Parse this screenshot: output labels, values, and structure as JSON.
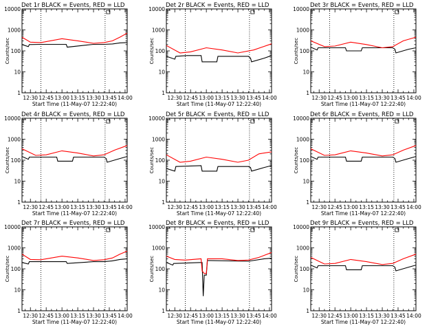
{
  "colors": {
    "events": "#000000",
    "lld": "#ff0000",
    "axes": "#000000",
    "grid": "#000000"
  },
  "chart_data": [
    {
      "type": "line",
      "title": "Det 1r BLACK = Events, RED = LLD",
      "xlabel": "Start Time (11-May-07 12:22:40)",
      "ylabel": "Counts/sec",
      "yscale": "log",
      "x_unit": "clock",
      "xlim": [
        "12:22",
        "14:02"
      ],
      "ylim": [
        1,
        10000
      ],
      "x_ticks": [
        "12:30",
        "12:45",
        "13:00",
        "13:15",
        "13:30",
        "13:45",
        "14:00"
      ],
      "y_ticks": [
        "1",
        "10",
        "100",
        "1000",
        "10000"
      ],
      "vlines": [
        "12:40",
        "13:41"
      ],
      "corner_mark": true,
      "series": [
        {
          "name": "Events",
          "x": [
            "12:22",
            "12:28",
            "12:29",
            "12:40",
            "13:04",
            "13:05",
            "13:30",
            "13:40",
            "13:48",
            "13:55",
            "14:02"
          ],
          "y": [
            200,
            160,
            200,
            205,
            205,
            150,
            205,
            205,
            215,
            240,
            250
          ]
        },
        {
          "name": "LLD",
          "x": [
            "12:22",
            "12:30",
            "12:40",
            "13:00",
            "13:15",
            "13:30",
            "13:40",
            "13:48",
            "13:55",
            "14:02"
          ],
          "y": [
            450,
            260,
            250,
            380,
            300,
            230,
            250,
            300,
            450,
            700
          ]
        }
      ]
    },
    {
      "type": "line",
      "title": "Det 2r BLACK = Events, RED = LLD",
      "xlabel": "Start Time (11-May-07 12:22:40)",
      "ylabel": "Counts/sec",
      "yscale": "log",
      "x_unit": "clock",
      "xlim": [
        "12:22",
        "14:02"
      ],
      "ylim": [
        1,
        10000
      ],
      "x_ticks": [
        "12:30",
        "12:45",
        "13:00",
        "13:15",
        "13:30",
        "13:45",
        "14:00"
      ],
      "y_ticks": [
        "1",
        "10",
        "100",
        "1000",
        "10000"
      ],
      "vlines": [
        "12:40",
        "13:41"
      ],
      "corner_mark": true,
      "series": [
        {
          "name": "Events",
          "x": [
            "12:22",
            "12:30",
            "12:31",
            "12:42",
            "12:55",
            "12:56",
            "13:10",
            "13:11",
            "13:40",
            "13:42",
            "13:43",
            "13:55",
            "14:02"
          ],
          "y": [
            55,
            40,
            55,
            60,
            60,
            30,
            30,
            55,
            55,
            45,
            30,
            45,
            60
          ]
        },
        {
          "name": "LLD",
          "x": [
            "12:22",
            "12:35",
            "12:45",
            "13:00",
            "13:15",
            "13:30",
            "13:45",
            "14:00",
            "14:02"
          ],
          "y": [
            180,
            80,
            90,
            140,
            110,
            80,
            110,
            200,
            220
          ]
        }
      ]
    },
    {
      "type": "line",
      "title": "Det 3r BLACK = Events, RED = LLD",
      "xlabel": "Start Time (11-May-07 12:22:40)",
      "ylabel": "Counts/sec",
      "yscale": "log",
      "x_unit": "clock",
      "xlim": [
        "12:22",
        "14:02"
      ],
      "ylim": [
        1,
        10000
      ],
      "x_ticks": [
        "12:30",
        "12:45",
        "13:00",
        "13:15",
        "13:30",
        "13:45",
        "14:00"
      ],
      "y_ticks": [
        "1",
        "10",
        "100",
        "1000",
        "10000"
      ],
      "vlines": [
        "12:40",
        "13:41"
      ],
      "corner_mark": true,
      "series": [
        {
          "name": "Events",
          "x": [
            "12:22",
            "12:28",
            "12:29",
            "12:55",
            "12:56",
            "13:10",
            "13:11",
            "13:40",
            "13:42",
            "13:43",
            "13:55",
            "14:02"
          ],
          "y": [
            150,
            110,
            140,
            140,
            100,
            100,
            140,
            140,
            120,
            80,
            120,
            140
          ]
        },
        {
          "name": "LLD",
          "x": [
            "12:22",
            "12:35",
            "12:45",
            "13:00",
            "13:15",
            "13:30",
            "13:40",
            "13:50",
            "14:02"
          ],
          "y": [
            300,
            160,
            170,
            260,
            200,
            140,
            160,
            300,
            450
          ]
        }
      ]
    },
    {
      "type": "line",
      "title": "Det 4r BLACK = Events, RED = LLD",
      "xlabel": "Start Time (11-May-07 12:22:40)",
      "ylabel": "Counts/sec",
      "yscale": "log",
      "x_unit": "clock",
      "xlim": [
        "12:22",
        "14:02"
      ],
      "ylim": [
        1,
        10000
      ],
      "x_ticks": [
        "12:30",
        "12:45",
        "13:00",
        "13:15",
        "13:30",
        "13:45",
        "14:00"
      ],
      "y_ticks": [
        "1",
        "10",
        "100",
        "1000",
        "10000"
      ],
      "vlines": [
        "12:40",
        "13:41"
      ],
      "corner_mark": true,
      "series": [
        {
          "name": "Events",
          "x": [
            "12:22",
            "12:28",
            "12:29",
            "12:55",
            "12:56",
            "13:10",
            "13:11",
            "13:40",
            "13:42",
            "13:43",
            "13:55",
            "14:02"
          ],
          "y": [
            150,
            110,
            140,
            140,
            90,
            90,
            140,
            140,
            120,
            80,
            120,
            150
          ]
        },
        {
          "name": "LLD",
          "x": [
            "12:22",
            "12:35",
            "12:45",
            "13:00",
            "13:15",
            "13:30",
            "13:40",
            "13:50",
            "14:02"
          ],
          "y": [
            350,
            170,
            180,
            280,
            220,
            160,
            180,
            300,
            500
          ]
        }
      ]
    },
    {
      "type": "line",
      "title": "Det 5r BLACK = Events, RED = LLD",
      "xlabel": "Start Time (11-May-07 12:22:40)",
      "ylabel": "Counts/sec",
      "yscale": "log",
      "x_unit": "clock",
      "xlim": [
        "12:22",
        "14:02"
      ],
      "ylim": [
        1,
        10000
      ],
      "x_ticks": [
        "12:30",
        "12:45",
        "13:00",
        "13:15",
        "13:30",
        "13:45",
        "14:00"
      ],
      "y_ticks": [
        "1",
        "10",
        "100",
        "1000",
        "10000"
      ],
      "vlines": [
        "12:40",
        "13:41"
      ],
      "corner_mark": true,
      "series": [
        {
          "name": "Events",
          "x": [
            "12:22",
            "12:30",
            "12:31",
            "12:55",
            "12:56",
            "13:10",
            "13:11",
            "13:40",
            "13:42",
            "13:43",
            "13:55",
            "14:02"
          ],
          "y": [
            40,
            30,
            50,
            55,
            30,
            30,
            50,
            50,
            45,
            30,
            45,
            55
          ]
        },
        {
          "name": "LLD",
          "x": [
            "12:22",
            "12:35",
            "12:45",
            "13:00",
            "13:15",
            "13:30",
            "13:40",
            "13:50",
            "14:02"
          ],
          "y": [
            180,
            80,
            90,
            140,
            110,
            80,
            100,
            200,
            250
          ]
        }
      ]
    },
    {
      "type": "line",
      "title": "Det 6r BLACK = Events, RED = LLD",
      "xlabel": "Start Time (11-May-07 12:22:40)",
      "ylabel": "Counts/sec",
      "yscale": "log",
      "x_unit": "clock",
      "xlim": [
        "12:22",
        "14:02"
      ],
      "ylim": [
        1,
        10000
      ],
      "x_ticks": [
        "12:30",
        "12:45",
        "13:00",
        "13:15",
        "13:30",
        "13:45",
        "14:00"
      ],
      "y_ticks": [
        "1",
        "10",
        "100",
        "1000",
        "10000"
      ],
      "vlines": [
        "12:40",
        "13:41"
      ],
      "corner_mark": true,
      "series": [
        {
          "name": "Events",
          "x": [
            "12:22",
            "12:28",
            "12:29",
            "12:55",
            "12:56",
            "13:10",
            "13:11",
            "13:40",
            "13:42",
            "13:43",
            "13:55",
            "14:02"
          ],
          "y": [
            150,
            110,
            140,
            140,
            90,
            90,
            140,
            140,
            120,
            80,
            120,
            150
          ]
        },
        {
          "name": "LLD",
          "x": [
            "12:22",
            "12:35",
            "12:45",
            "13:00",
            "13:15",
            "13:30",
            "13:40",
            "13:50",
            "14:02"
          ],
          "y": [
            350,
            170,
            180,
            280,
            220,
            160,
            180,
            300,
            500
          ]
        }
      ]
    },
    {
      "type": "line",
      "title": "Det 7r BLACK = Events, RED = LLD",
      "xlabel": "Start Time (11-May-07 12:22:40)",
      "ylabel": "Counts/sec",
      "yscale": "log",
      "x_unit": "clock",
      "xlim": [
        "12:22",
        "14:02"
      ],
      "ylim": [
        1,
        10000
      ],
      "x_ticks": [
        "12:30",
        "12:45",
        "13:00",
        "13:15",
        "13:30",
        "13:45",
        "14:00"
      ],
      "y_ticks": [
        "1",
        "10",
        "100",
        "1000",
        "10000"
      ],
      "vlines": [
        "12:40",
        "13:41"
      ],
      "corner_mark": true,
      "series": [
        {
          "name": "Events",
          "x": [
            "12:22",
            "12:28",
            "12:29",
            "12:40",
            "13:04",
            "13:05",
            "13:30",
            "13:40",
            "13:48",
            "13:55",
            "14:02"
          ],
          "y": [
            200,
            170,
            220,
            220,
            220,
            180,
            220,
            220,
            240,
            280,
            300
          ]
        },
        {
          "name": "LLD",
          "x": [
            "12:22",
            "12:30",
            "12:40",
            "13:00",
            "13:15",
            "13:30",
            "13:40",
            "13:48",
            "13:55",
            "14:02"
          ],
          "y": [
            500,
            280,
            270,
            400,
            330,
            250,
            270,
            330,
            500,
            700
          ]
        }
      ]
    },
    {
      "type": "line",
      "title": "Det 8r BLACK = Events, RED = LLD",
      "xlabel": "Start Time (11-May-07 12:22:40)",
      "ylabel": "Counts/sec",
      "yscale": "log",
      "x_unit": "clock",
      "xlim": [
        "12:22",
        "14:02"
      ],
      "ylim": [
        1,
        10000
      ],
      "x_ticks": [
        "12:30",
        "12:45",
        "13:00",
        "13:15",
        "13:30",
        "13:45",
        "14:00"
      ],
      "y_ticks": [
        "1",
        "10",
        "100",
        "1000",
        "10000"
      ],
      "vlines": [
        "12:40",
        "13:41"
      ],
      "corner_mark": true,
      "series": [
        {
          "name": "Events",
          "x": [
            "12:22",
            "12:28",
            "12:29",
            "12:55",
            "12:56",
            "12:57",
            "12:58",
            "13:00",
            "13:01",
            "13:02",
            "13:40",
            "13:55",
            "14:02"
          ],
          "y": [
            200,
            150,
            180,
            200,
            200,
            5,
            50,
            50,
            250,
            250,
            230,
            300,
            320
          ]
        },
        {
          "name": "LLD",
          "x": [
            "12:22",
            "12:30",
            "12:40",
            "12:55",
            "12:56",
            "12:58",
            "13:00",
            "13:01",
            "13:15",
            "13:30",
            "13:40",
            "13:50",
            "14:02"
          ],
          "y": [
            400,
            280,
            260,
            300,
            80,
            60,
            60,
            300,
            300,
            250,
            260,
            350,
            600
          ]
        }
      ]
    },
    {
      "type": "line",
      "title": "Det 9r BLACK = Events, RED = LLD",
      "xlabel": "Start Time (11-May-07 12:22:40)",
      "ylabel": "Counts/sec",
      "yscale": "log",
      "x_unit": "clock",
      "xlim": [
        "12:22",
        "14:02"
      ],
      "ylim": [
        1,
        10000
      ],
      "x_ticks": [
        "12:30",
        "12:45",
        "13:00",
        "13:15",
        "13:30",
        "13:45",
        "14:00"
      ],
      "y_ticks": [
        "1",
        "10",
        "100",
        "1000",
        "10000"
      ],
      "vlines": [
        "12:40",
        "13:41"
      ],
      "corner_mark": true,
      "series": [
        {
          "name": "Events",
          "x": [
            "12:22",
            "12:28",
            "12:29",
            "12:55",
            "12:56",
            "13:10",
            "13:11",
            "13:40",
            "13:42",
            "13:43",
            "13:55",
            "14:02"
          ],
          "y": [
            150,
            110,
            140,
            140,
            90,
            90,
            140,
            140,
            120,
            80,
            120,
            150
          ]
        },
        {
          "name": "LLD",
          "x": [
            "12:22",
            "12:35",
            "12:45",
            "13:00",
            "13:15",
            "13:30",
            "13:40",
            "13:50",
            "14:02"
          ],
          "y": [
            350,
            170,
            180,
            280,
            220,
            160,
            180,
            300,
            500
          ]
        }
      ]
    }
  ]
}
